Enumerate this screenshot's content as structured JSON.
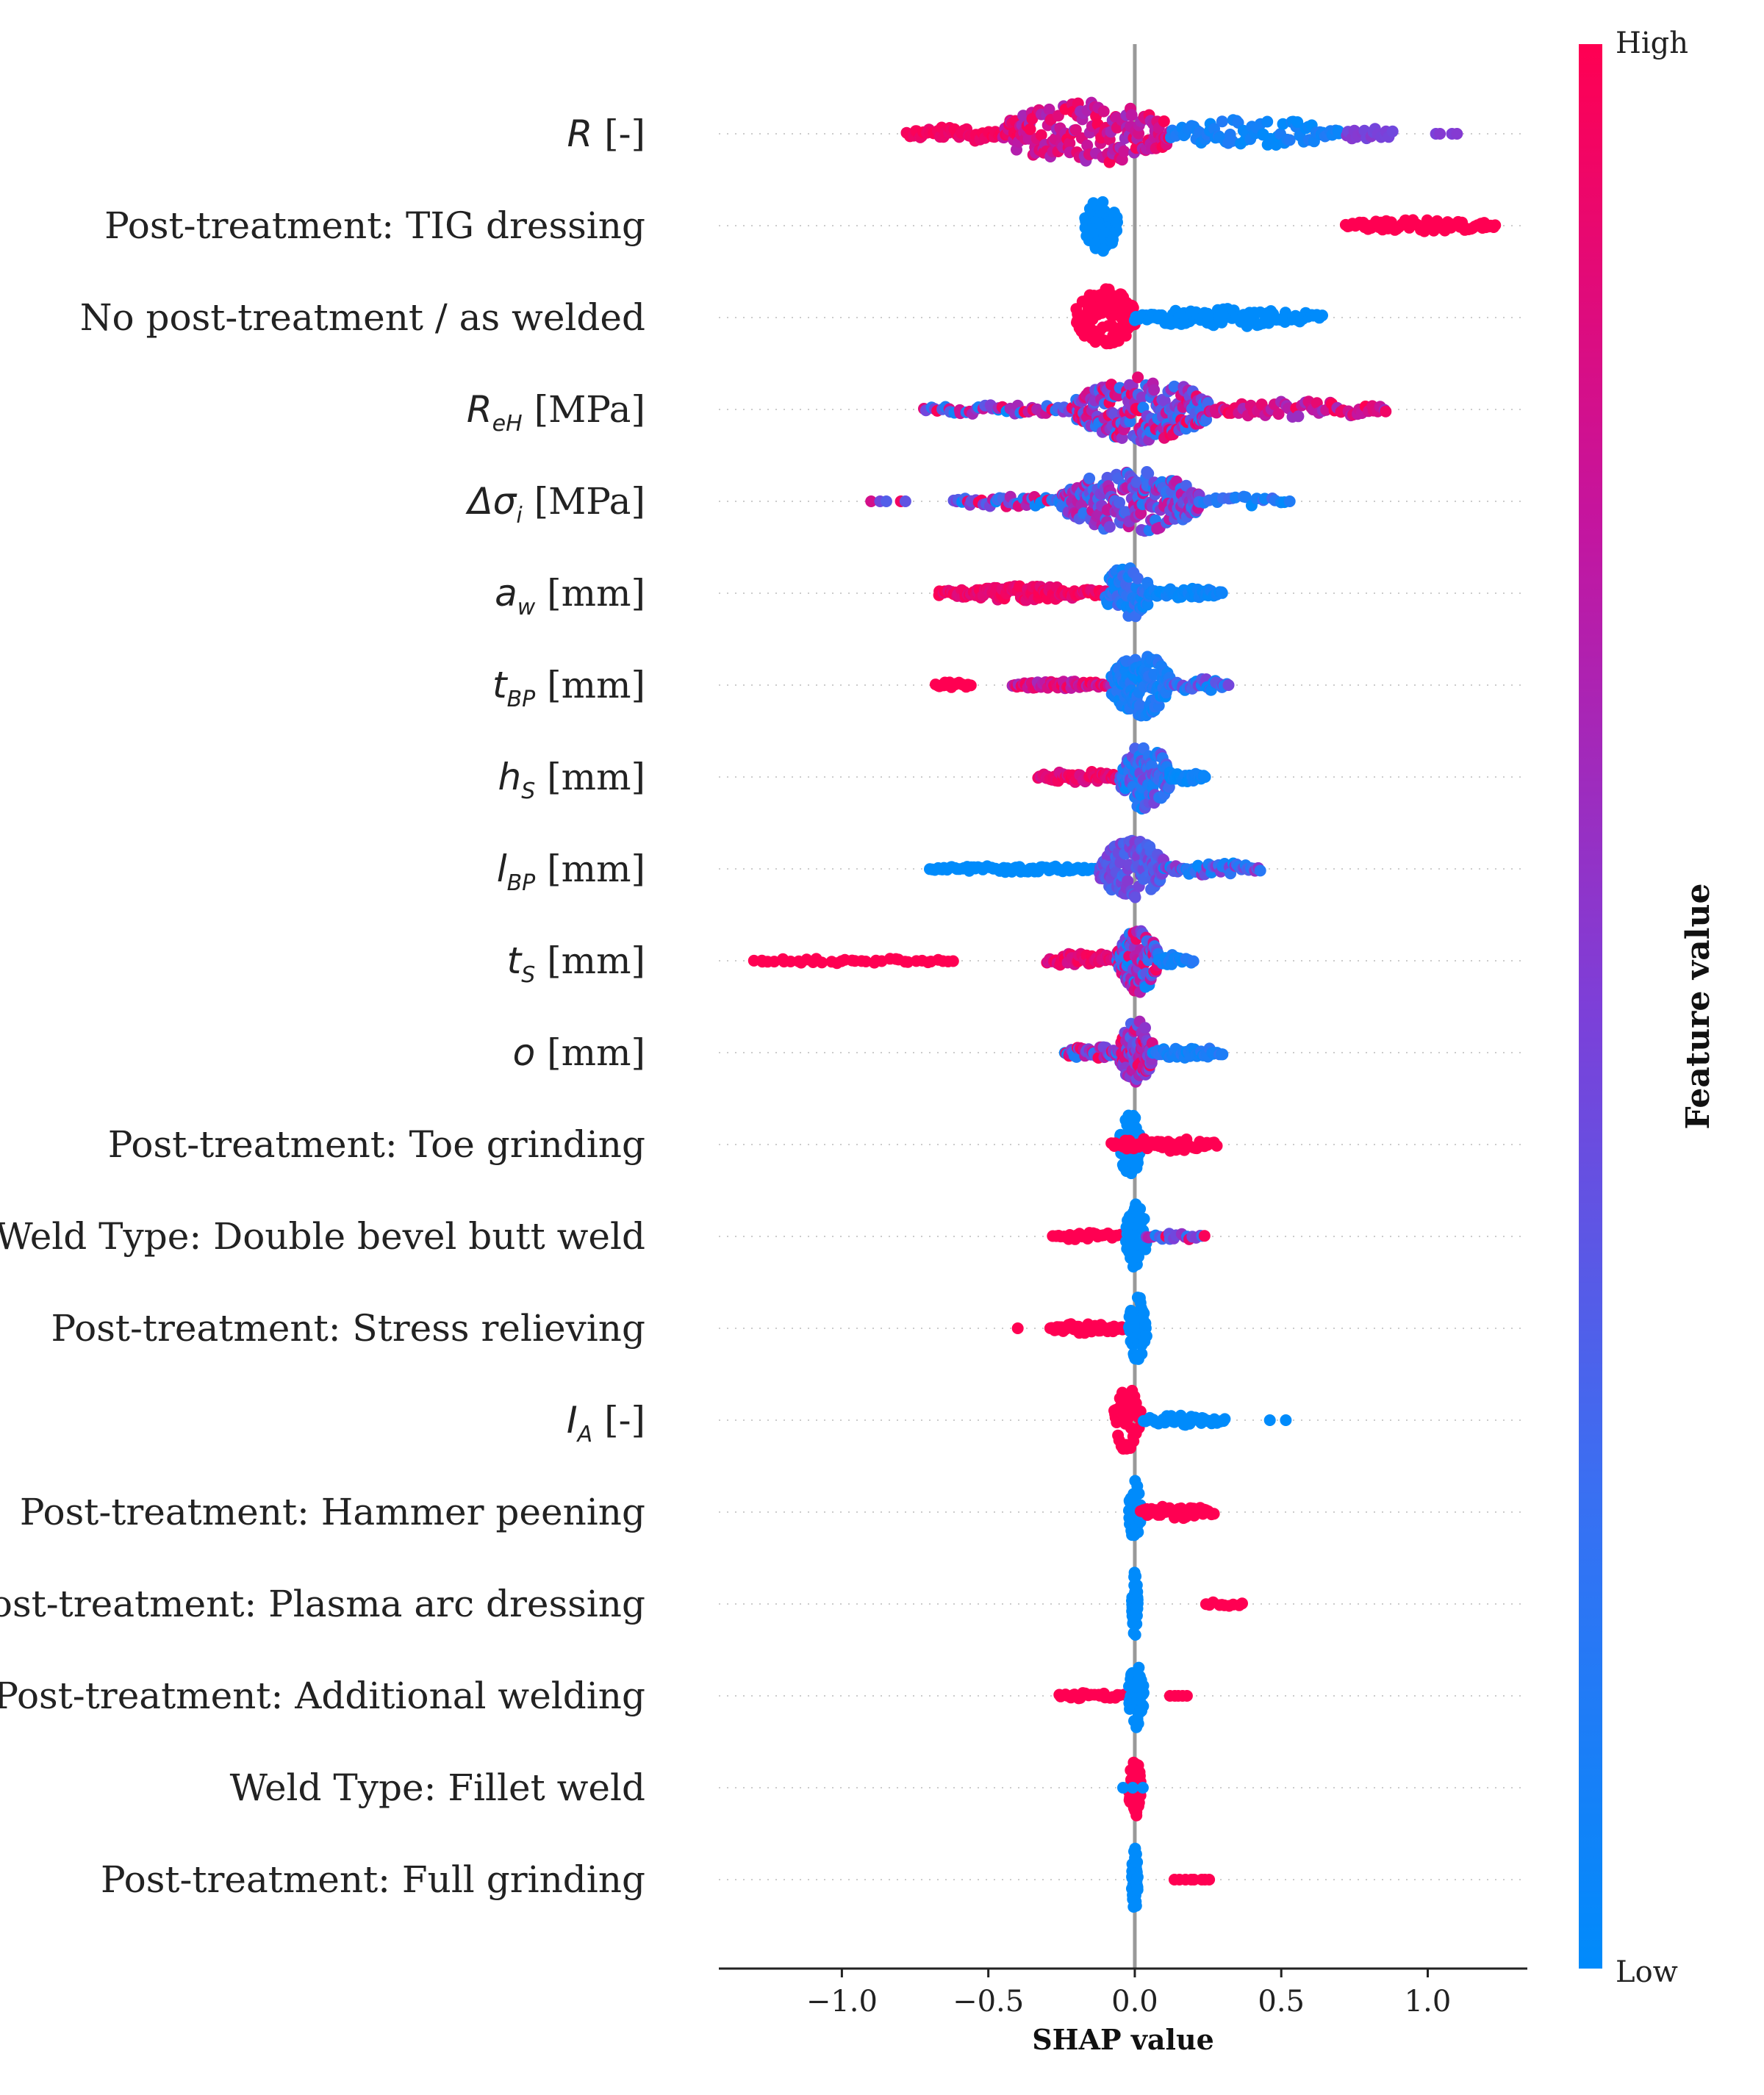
{
  "chart_data": {
    "type": "scatter",
    "subtype": "shap-beeswarm-summary",
    "xlabel": "SHAP value",
    "xlim": [
      -1.42,
      1.34
    ],
    "xticks": [
      -1.0,
      -0.5,
      0.0,
      0.5,
      1.0
    ],
    "xtick_labels": [
      "−1.0",
      "−0.5",
      "0.0",
      "0.5",
      "1.0"
    ],
    "colorbar": {
      "title": "Feature value",
      "high_label": "High",
      "low_label": "Low",
      "high_color": "#ff0052",
      "low_color": "#008bfb"
    },
    "features": [
      {
        "label": "R [-]",
        "sym": "R",
        "sub": "",
        "unit": "[-]",
        "text": "",
        "segments": [
          {
            "from": -0.78,
            "to": -0.45,
            "n": 45,
            "spread": 0.25,
            "color": [
              0.9,
              1.0
            ]
          },
          {
            "from": -0.45,
            "to": 0.12,
            "n": 160,
            "spread": 1.0,
            "color": [
              0.6,
              1.0
            ]
          },
          {
            "from": 0.12,
            "to": 0.7,
            "n": 75,
            "spread": 0.45,
            "color": [
              0.0,
              0.15
            ]
          },
          {
            "from": 0.72,
            "to": 0.88,
            "n": 18,
            "spread": 0.25,
            "color": [
              0.45,
              0.55
            ]
          },
          {
            "from": 1.02,
            "to": 1.1,
            "n": 4,
            "spread": 0.0,
            "color": [
              0.45,
              0.55
            ]
          }
        ]
      },
      {
        "label": "Post-treatment: TIG dressing",
        "sym": "",
        "sub": "",
        "unit": "",
        "text": "Post-treatment: TIG dressing",
        "segments": [
          {
            "from": -0.17,
            "to": -0.06,
            "n": 90,
            "spread": 0.85,
            "color": [
              0.0,
              0.0
            ]
          },
          {
            "from": 0.72,
            "to": 1.23,
            "n": 70,
            "spread": 0.18,
            "color": [
              1.0,
              1.0
            ]
          }
        ]
      },
      {
        "label": "No post-treatment / as welded",
        "sym": "",
        "sub": "",
        "unit": "",
        "text": "No post-treatment / as welded",
        "segments": [
          {
            "from": -0.2,
            "to": 0.0,
            "n": 120,
            "spread": 0.9,
            "color": [
              1.0,
              1.0
            ]
          },
          {
            "from": 0.0,
            "to": 0.64,
            "n": 90,
            "spread": 0.28,
            "color": [
              0.0,
              0.0
            ]
          }
        ]
      },
      {
        "label": "ReH [MPa]",
        "sym": "R",
        "sub": "eH",
        "unit": "[MPa]",
        "text": "",
        "segments": [
          {
            "from": -0.72,
            "to": -0.2,
            "n": 45,
            "spread": 0.15,
            "color": [
              0.0,
              1.0
            ]
          },
          {
            "from": -0.2,
            "to": 0.25,
            "n": 200,
            "spread": 1.0,
            "color": [
              0.1,
              1.0
            ]
          },
          {
            "from": 0.25,
            "to": 0.86,
            "n": 60,
            "spread": 0.25,
            "color": [
              0.6,
              1.0
            ]
          }
        ]
      },
      {
        "label": "Δσi [MPa]",
        "sym": "Δσ",
        "sub": "i",
        "unit": "[MPa]",
        "text": "",
        "segments": [
          {
            "from": -0.9,
            "to": -0.78,
            "n": 5,
            "spread": 0.0,
            "color": [
              0.3,
              1.0
            ]
          },
          {
            "from": -0.62,
            "to": -0.25,
            "n": 40,
            "spread": 0.18,
            "color": [
              0.0,
              1.0
            ]
          },
          {
            "from": -0.25,
            "to": 0.22,
            "n": 200,
            "spread": 0.95,
            "color": [
              0.1,
              0.8
            ]
          },
          {
            "from": 0.22,
            "to": 0.53,
            "n": 20,
            "spread": 0.15,
            "color": [
              0.0,
              0.3
            ]
          }
        ]
      },
      {
        "label": "aw [mm]",
        "sym": "a",
        "sub": "w",
        "unit": "[mm]",
        "text": "",
        "segments": [
          {
            "from": -0.67,
            "to": -0.1,
            "n": 110,
            "spread": 0.22,
            "color": [
              0.85,
              1.0
            ]
          },
          {
            "from": -0.1,
            "to": 0.05,
            "n": 60,
            "spread": 0.9,
            "color": [
              0.0,
              0.3
            ]
          },
          {
            "from": 0.05,
            "to": 0.3,
            "n": 45,
            "spread": 0.15,
            "color": [
              0.0,
              0.1
            ]
          }
        ]
      },
      {
        "label": "tBP [mm]",
        "sym": "t",
        "sub": "BP",
        "unit": "[mm]",
        "text": "",
        "segments": [
          {
            "from": -0.68,
            "to": -0.56,
            "n": 16,
            "spread": 0.1,
            "color": [
              1.0,
              1.0
            ]
          },
          {
            "from": -0.42,
            "to": -0.08,
            "n": 55,
            "spread": 0.12,
            "color": [
              0.6,
              1.0
            ]
          },
          {
            "from": -0.08,
            "to": 0.12,
            "n": 130,
            "spread": 1.0,
            "color": [
              0.0,
              0.2
            ]
          },
          {
            "from": 0.12,
            "to": 0.32,
            "n": 35,
            "spread": 0.2,
            "color": [
              0.0,
              0.5
            ]
          }
        ]
      },
      {
        "label": "hS [mm]",
        "sym": "h",
        "sub": "S",
        "unit": "[mm]",
        "text": "",
        "segments": [
          {
            "from": -0.33,
            "to": -0.05,
            "n": 55,
            "spread": 0.18,
            "color": [
              0.8,
              1.0
            ]
          },
          {
            "from": -0.05,
            "to": 0.12,
            "n": 100,
            "spread": 1.0,
            "color": [
              0.0,
              0.5
            ]
          },
          {
            "from": 0.12,
            "to": 0.24,
            "n": 25,
            "spread": 0.15,
            "color": [
              0.0,
              0.1
            ]
          }
        ]
      },
      {
        "label": "lBP [mm]",
        "sym": "l",
        "sub": "BP",
        "unit": "[mm]",
        "text": "",
        "segments": [
          {
            "from": -0.7,
            "to": -0.12,
            "n": 70,
            "spread": 0.1,
            "color": [
              0.0,
              0.0
            ]
          },
          {
            "from": -0.12,
            "to": 0.1,
            "n": 120,
            "spread": 0.9,
            "color": [
              0.25,
              0.55
            ]
          },
          {
            "from": 0.1,
            "to": 0.43,
            "n": 50,
            "spread": 0.2,
            "color": [
              0.0,
              0.6
            ]
          }
        ]
      },
      {
        "label": "tS [mm]",
        "sym": "t",
        "sub": "S",
        "unit": "[mm]",
        "text": "",
        "segments": [
          {
            "from": -1.3,
            "to": -0.62,
            "n": 38,
            "spread": 0.08,
            "color": [
              1.0,
              1.0
            ]
          },
          {
            "from": -0.3,
            "to": -0.06,
            "n": 40,
            "spread": 0.25,
            "color": [
              0.8,
              1.0
            ]
          },
          {
            "from": -0.06,
            "to": 0.08,
            "n": 100,
            "spread": 1.0,
            "color": [
              0.0,
              1.0
            ]
          },
          {
            "from": 0.08,
            "to": 0.2,
            "n": 20,
            "spread": 0.2,
            "color": [
              0.0,
              0.2
            ]
          }
        ]
      },
      {
        "label": "o [mm]",
        "sym": "o",
        "sub": "",
        "unit": "[mm]",
        "text": "",
        "segments": [
          {
            "from": -0.24,
            "to": -0.05,
            "n": 40,
            "spread": 0.2,
            "color": [
              0.0,
              1.0
            ]
          },
          {
            "from": -0.05,
            "to": 0.06,
            "n": 90,
            "spread": 1.0,
            "color": [
              0.3,
              1.0
            ]
          },
          {
            "from": 0.06,
            "to": 0.3,
            "n": 40,
            "spread": 0.18,
            "color": [
              0.0,
              0.2
            ]
          }
        ]
      },
      {
        "label": "Post-treatment: Toe grinding",
        "sym": "",
        "sub": "",
        "unit": "",
        "text": "Post-treatment: Toe grinding",
        "segments": [
          {
            "from": -0.05,
            "to": 0.02,
            "n": 60,
            "spread": 1.0,
            "color": [
              0.0,
              0.0
            ]
          },
          {
            "from": -0.08,
            "to": 0.28,
            "n": 50,
            "spread": 0.2,
            "color": [
              1.0,
              1.0
            ]
          }
        ]
      },
      {
        "label": "Weld Type: Double bevel butt weld",
        "sym": "",
        "sub": "",
        "unit": "",
        "text": "Weld Type: Double bevel butt weld",
        "segments": [
          {
            "from": -0.28,
            "to": -0.03,
            "n": 25,
            "spread": 0.12,
            "color": [
              1.0,
              1.0
            ]
          },
          {
            "from": -0.03,
            "to": 0.04,
            "n": 50,
            "spread": 1.0,
            "color": [
              0.0,
              0.0
            ]
          },
          {
            "from": 0.04,
            "to": 0.24,
            "n": 20,
            "spread": 0.12,
            "color": [
              0.0,
              1.0
            ]
          }
        ]
      },
      {
        "label": "Post-treatment: Stress relieving",
        "sym": "",
        "sub": "",
        "unit": "",
        "text": "Post-treatment: Stress relieving",
        "segments": [
          {
            "from": -0.4,
            "to": -0.38,
            "n": 1,
            "spread": 0.0,
            "color": [
              1.0,
              1.0
            ]
          },
          {
            "from": -0.29,
            "to": -0.04,
            "n": 45,
            "spread": 0.15,
            "color": [
              1.0,
              1.0
            ]
          },
          {
            "from": -0.02,
            "to": 0.04,
            "n": 50,
            "spread": 1.0,
            "color": [
              0.0,
              0.0
            ]
          }
        ]
      },
      {
        "label": "IA [-]",
        "sym": "I",
        "sub": "A",
        "unit": "[-]",
        "text": "",
        "segments": [
          {
            "from": -0.07,
            "to": 0.02,
            "n": 50,
            "spread": 1.0,
            "color": [
              1.0,
              1.0
            ]
          },
          {
            "from": 0.03,
            "to": 0.31,
            "n": 40,
            "spread": 0.15,
            "color": [
              0.0,
              0.0
            ]
          },
          {
            "from": 0.46,
            "to": 0.52,
            "n": 2,
            "spread": 0.0,
            "color": [
              0.0,
              0.0
            ]
          }
        ]
      },
      {
        "label": "Post-treatment: Hammer peening",
        "sym": "",
        "sub": "",
        "unit": "",
        "text": "Post-treatment: Hammer peening",
        "segments": [
          {
            "from": -0.02,
            "to": 0.02,
            "n": 50,
            "spread": 1.0,
            "color": [
              0.0,
              0.0
            ]
          },
          {
            "from": 0.02,
            "to": 0.27,
            "n": 40,
            "spread": 0.2,
            "color": [
              1.0,
              1.0
            ]
          }
        ]
      },
      {
        "label": "Post-treatment: Plasma arc dressing",
        "sym": "",
        "sub": "",
        "unit": "",
        "text": "Post-treatment: Plasma arc dressing",
        "segments": [
          {
            "from": -0.01,
            "to": 0.01,
            "n": 50,
            "spread": 1.0,
            "color": [
              0.0,
              0.0
            ]
          },
          {
            "from": 0.24,
            "to": 0.37,
            "n": 10,
            "spread": 0.1,
            "color": [
              1.0,
              1.0
            ]
          }
        ]
      },
      {
        "label": "Post-treatment: Additional welding",
        "sym": "",
        "sub": "",
        "unit": "",
        "text": "Post-treatment: Additional welding",
        "segments": [
          {
            "from": -0.26,
            "to": -0.03,
            "n": 25,
            "spread": 0.12,
            "color": [
              1.0,
              1.0
            ]
          },
          {
            "from": -0.02,
            "to": 0.03,
            "n": 50,
            "spread": 1.0,
            "color": [
              0.0,
              0.0
            ]
          },
          {
            "from": 0.12,
            "to": 0.18,
            "n": 5,
            "spread": 0.0,
            "color": [
              1.0,
              1.0
            ]
          }
        ]
      },
      {
        "label": "Weld Type: Fillet weld",
        "sym": "",
        "sub": "",
        "unit": "",
        "text": "Weld Type: Fillet weld",
        "segments": [
          {
            "from": -0.02,
            "to": 0.02,
            "n": 50,
            "spread": 0.95,
            "color": [
              1.0,
              1.0
            ]
          },
          {
            "from": -0.04,
            "to": 0.04,
            "n": 3,
            "spread": 0.0,
            "color": [
              0.0,
              0.0
            ]
          }
        ]
      },
      {
        "label": "Post-treatment: Full grinding",
        "sym": "",
        "sub": "",
        "unit": "",
        "text": "Post-treatment: Full grinding",
        "segments": [
          {
            "from": -0.01,
            "to": 0.01,
            "n": 50,
            "spread": 1.0,
            "color": [
              0.0,
              0.0
            ]
          },
          {
            "from": 0.13,
            "to": 0.26,
            "n": 8,
            "spread": 0.0,
            "color": [
              1.0,
              1.0
            ]
          }
        ]
      }
    ]
  }
}
